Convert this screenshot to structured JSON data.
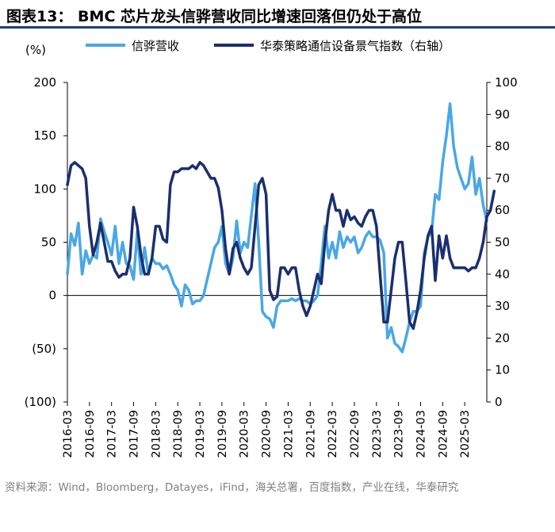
{
  "header": {
    "title": "图表13： BMC 芯片龙头信骅营收同比增速回落但仍处于高位"
  },
  "source_note": "资料来源：Wind，Bloomberg，Datayes，iFind，海关总署，百度指数，产业在线，华泰研究",
  "colors": {
    "series1": "#4aa7e6",
    "series2": "#1a2f6e",
    "title_rule": "#1f3f6e"
  },
  "chart_data": {
    "type": "line",
    "title": "",
    "left_axis": {
      "unit_label": "(%)",
      "min": -100,
      "max": 200,
      "ticks": [
        200,
        150,
        100,
        50,
        0,
        -50,
        -100
      ],
      "tick_labels": [
        "200",
        "150",
        "100",
        "50",
        "0",
        "(50)",
        "(100)"
      ]
    },
    "right_axis": {
      "min": 0,
      "max": 100,
      "ticks": [
        100,
        90,
        80,
        70,
        60,
        50,
        40,
        30,
        20,
        10,
        0
      ],
      "tick_labels": [
        "100",
        "90",
        "80",
        "70",
        "60",
        "50",
        "40",
        "30",
        "20",
        "10",
        "0"
      ]
    },
    "x_start": "2016-03",
    "x_tick_labels": [
      "2016-03",
      "2016-09",
      "2017-03",
      "2017-09",
      "2018-03",
      "2018-09",
      "2019-03",
      "2019-09",
      "2020-03",
      "2020-09",
      "2021-03",
      "2021-09",
      "2022-03",
      "2022-09",
      "2023-03",
      "2023-09",
      "2024-03",
      "2024-09",
      "2025-03"
    ],
    "legend": [
      "信骅营收",
      "华泰策略通信设备景气指数（右轴）"
    ],
    "series": [
      {
        "name": "信骅营收",
        "axis": "left",
        "values": [
          20,
          58,
          47,
          68,
          20,
          42,
          30,
          38,
          35,
          72,
          60,
          50,
          38,
          65,
          30,
          50,
          30,
          28,
          15,
          60,
          20,
          45,
          20,
          35,
          30,
          30,
          25,
          28,
          20,
          10,
          5,
          -10,
          10,
          5,
          -8,
          -5,
          -5,
          0,
          15,
          30,
          45,
          50,
          65,
          30,
          20,
          35,
          70,
          40,
          50,
          45,
          75,
          105,
          50,
          -15,
          -20,
          -22,
          -30,
          -10,
          -5,
          -5,
          -5,
          -3,
          -5,
          -3,
          -5,
          -5,
          -8,
          -5,
          0,
          30,
          65,
          35,
          50,
          35,
          60,
          45,
          55,
          50,
          55,
          40,
          45,
          55,
          60,
          55,
          55,
          52,
          40,
          -40,
          -30,
          -45,
          -48,
          -53,
          -40,
          -25,
          -15,
          -15,
          -10,
          40,
          55,
          60,
          95,
          90,
          125,
          150,
          180,
          140,
          120,
          110,
          100,
          105,
          130,
          95,
          110,
          85,
          70
        ]
      },
      {
        "name": "华泰策略通信设备景气指数（右轴）",
        "axis": "right",
        "values": [
          68,
          74,
          75,
          74,
          73,
          70,
          55,
          46,
          50,
          56,
          50,
          44,
          44,
          41,
          39,
          40,
          40,
          45,
          61,
          55,
          46,
          40,
          40,
          45,
          55,
          55,
          51,
          50,
          68,
          72,
          72,
          73,
          73,
          73,
          74,
          73,
          75,
          74,
          72,
          70,
          70,
          67,
          60,
          48,
          40,
          48,
          50,
          45,
          42,
          40,
          42,
          55,
          68,
          70,
          65,
          35,
          32,
          33,
          42,
          42,
          40,
          42,
          42,
          35,
          30,
          27,
          30,
          35,
          40,
          37,
          50,
          60,
          65,
          60,
          60,
          55,
          60,
          57,
          58,
          56,
          55,
          58,
          60,
          60,
          55,
          40,
          25,
          25,
          35,
          45,
          50,
          50,
          38,
          25,
          23,
          28,
          35,
          45,
          52,
          55,
          38,
          52,
          45,
          52,
          45,
          42,
          42,
          42,
          42,
          41,
          42,
          42,
          45,
          50,
          58,
          60,
          66
        ]
      }
    ]
  }
}
